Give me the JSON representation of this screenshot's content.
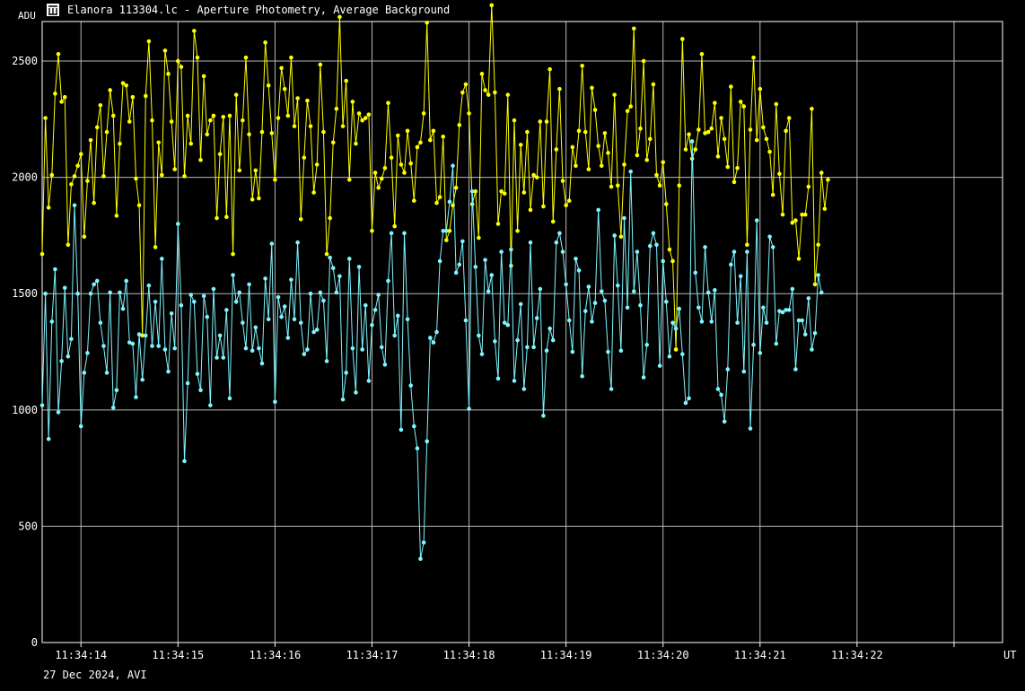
{
  "window": {
    "title": "Elanora 113304.lc - Aperture Photometry, Average Background",
    "icon": "aperture-icon"
  },
  "footer": {
    "date_label": "27 Dec 2024, AVI"
  },
  "colors": {
    "background": "#000000",
    "grid": "#b8b8b8",
    "series_yellow": "#ffff00",
    "series_cyan": "#7ff5ff"
  },
  "chart_data": {
    "type": "line",
    "ylabel": "ADU",
    "xlabel": "UT",
    "ylim": [
      0,
      2670
    ],
    "xlim": [
      0,
      297
    ],
    "y_ticks": [
      0,
      500,
      1000,
      1500,
      2000,
      2500
    ],
    "x_ticks": [
      {
        "x": 12,
        "label": "11:34:14"
      },
      {
        "x": 42,
        "label": "11:34:15"
      },
      {
        "x": 72,
        "label": "11:34:16"
      },
      {
        "x": 102,
        "label": "11:34:17"
      },
      {
        "x": 132,
        "label": "11:34:18"
      },
      {
        "x": 162,
        "label": "11:34:19"
      },
      {
        "x": 192,
        "label": "11:34:20"
      },
      {
        "x": 222,
        "label": "11:34:21"
      },
      {
        "x": 252,
        "label": "11:34:22"
      },
      {
        "x": 282,
        "label": ""
      }
    ],
    "grid": true,
    "series": [
      {
        "color": "#ffff00",
        "values": [
          1670,
          2255,
          1870,
          2010,
          2360,
          2530,
          2325,
          2345,
          1710,
          1970,
          2005,
          2050,
          2100,
          1745,
          1985,
          2160,
          1890,
          2215,
          2310,
          2005,
          2195,
          2375,
          2265,
          1835,
          2145,
          2405,
          2395,
          2240,
          2345,
          1995,
          1880,
          1320,
          2350,
          2585,
          2245,
          1700,
          2150,
          2010,
          2545,
          2445,
          2240,
          2035,
          2500,
          2475,
          2005,
          2265,
          2145,
          2630,
          2515,
          2075,
          2435,
          2185,
          2245,
          2265,
          1825,
          2100,
          2260,
          1830,
          2265,
          1670,
          2355,
          2030,
          2245,
          2515,
          2185,
          1905,
          2030,
          1910,
          2195,
          2580,
          2395,
          2190,
          1990,
          2255,
          2470,
          2380,
          2265,
          2515,
          2220,
          2340,
          1820,
          2085,
          2330,
          2220,
          1935,
          2055,
          2485,
          2195,
          1670,
          1825,
          2150,
          2295,
          2690,
          2220,
          2415,
          1990,
          2325,
          2145,
          2275,
          2245,
          2255,
          2270,
          1770,
          2020,
          1955,
          1995,
          2040,
          2320,
          2085,
          1790,
          2180,
          2055,
          2020,
          2200,
          2060,
          1900,
          2130,
          2150,
          2275,
          2665,
          2160,
          2200,
          1890,
          1915,
          2175,
          1730,
          1770,
          1880,
          1955,
          2225,
          2365,
          2400,
          2275,
          1885,
          1940,
          1740,
          2445,
          2375,
          2355,
          2740,
          2365,
          1800,
          1940,
          1930,
          2355,
          1620,
          2245,
          1770,
          2140,
          1935,
          2195,
          1860,
          2010,
          2000,
          2240,
          1875,
          2240,
          2465,
          1810,
          2120,
          2380,
          1985,
          1880,
          1900,
          2130,
          2050,
          2200,
          2480,
          2195,
          2035,
          2385,
          2290,
          2135,
          2050,
          2190,
          2105,
          1960,
          2355,
          1965,
          1745,
          2055,
          2285,
          2305,
          2640,
          2095,
          2210,
          2500,
          2075,
          2165,
          2400,
          2010,
          1965,
          2065,
          1885,
          1690,
          1640,
          1260,
          1965,
          2595,
          2120,
          2185,
          2080,
          2120,
          2205,
          2530,
          2190,
          2195,
          2210,
          2320,
          2090,
          2255,
          2165,
          2045,
          2390,
          1980,
          2040,
          2325,
          2305,
          1710,
          2205,
          2515,
          2160,
          2380,
          2215,
          2165,
          2110,
          1925,
          2315,
          2015,
          1840,
          2200,
          2255,
          1805,
          1815,
          1650,
          1840,
          1840,
          1960,
          2295,
          1540,
          1710,
          2020,
          1865,
          1990
        ]
      },
      {
        "color": "#7ff5ff",
        "values": [
          1020,
          1500,
          875,
          1380,
          1605,
          990,
          1210,
          1525,
          1230,
          1305,
          1880,
          1500,
          930,
          1160,
          1245,
          1500,
          1540,
          1555,
          1375,
          1275,
          1160,
          1505,
          1010,
          1085,
          1505,
          1435,
          1555,
          1290,
          1285,
          1055,
          1325,
          1130,
          1320,
          1535,
          1275,
          1465,
          1275,
          1650,
          1260,
          1165,
          1415,
          1265,
          1800,
          1450,
          780,
          1115,
          1495,
          1465,
          1155,
          1085,
          1490,
          1400,
          1020,
          1520,
          1225,
          1320,
          1225,
          1430,
          1050,
          1580,
          1465,
          1505,
          1375,
          1265,
          1540,
          1255,
          1355,
          1265,
          1200,
          1565,
          1390,
          1715,
          1035,
          1485,
          1400,
          1445,
          1310,
          1560,
          1390,
          1720,
          1375,
          1240,
          1260,
          1500,
          1335,
          1345,
          1505,
          1470,
          1210,
          1655,
          1610,
          1505,
          1575,
          1045,
          1160,
          1650,
          1265,
          1075,
          1615,
          1260,
          1450,
          1125,
          1365,
          1430,
          1495,
          1270,
          1195,
          1555,
          1760,
          1320,
          1405,
          915,
          1760,
          1390,
          1105,
          930,
          835,
          360,
          430,
          865,
          1310,
          1290,
          1335,
          1640,
          1770,
          1770,
          1895,
          2050,
          1590,
          1625,
          1725,
          1385,
          1005,
          1940,
          1615,
          1320,
          1240,
          1645,
          1510,
          1580,
          1295,
          1135,
          1680,
          1375,
          1365,
          1690,
          1125,
          1300,
          1455,
          1090,
          1270,
          1720,
          1270,
          1395,
          1520,
          975,
          1255,
          1350,
          1300,
          1720,
          1760,
          1680,
          1540,
          1385,
          1250,
          1650,
          1600,
          1145,
          1425,
          1530,
          1380,
          1460,
          1860,
          1510,
          1470,
          1250,
          1090,
          1750,
          1535,
          1255,
          1825,
          1440,
          2025,
          1510,
          1680,
          1450,
          1140,
          1280,
          1705,
          1760,
          1710,
          1190,
          1640,
          1465,
          1230,
          1375,
          1350,
          1435,
          1240,
          1030,
          1050,
          2155,
          1590,
          1440,
          1380,
          1700,
          1505,
          1380,
          1515,
          1090,
          1065,
          950,
          1175,
          1625,
          1680,
          1375,
          1575,
          1165,
          1680,
          920,
          1280,
          1815,
          1245,
          1440,
          1375,
          1745,
          1700,
          1285,
          1425,
          1420,
          1430,
          1430,
          1520,
          1175,
          1385,
          1385,
          1325,
          1480,
          1260,
          1330,
          1580,
          1505
        ]
      }
    ]
  }
}
